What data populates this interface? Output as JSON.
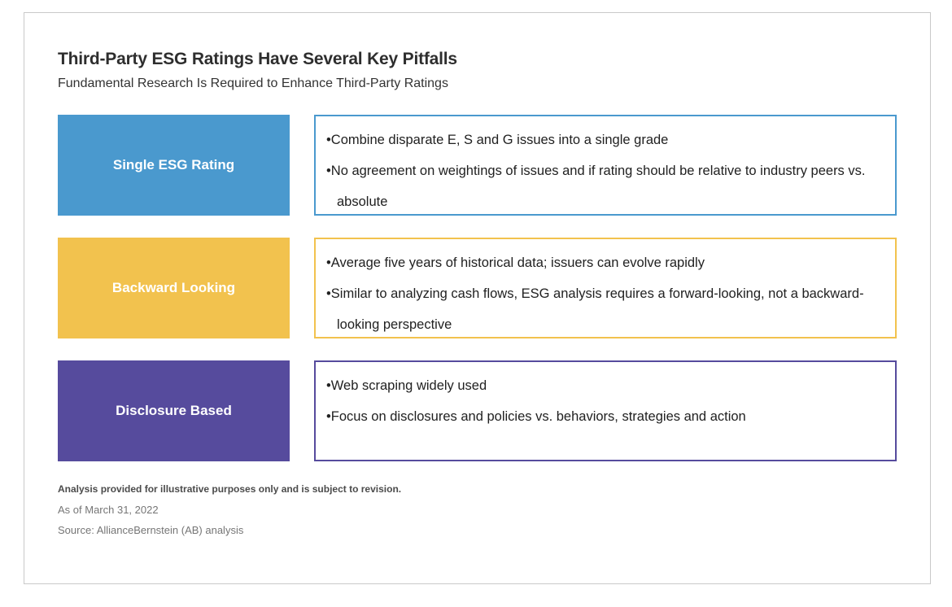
{
  "header": {
    "title": "Third-Party ESG Ratings Have Several Key Pitfalls",
    "subtitle": "Fundamental Research Is Required to Enhance Third-Party Ratings"
  },
  "rows": [
    {
      "label": "Single ESG Rating",
      "color": "#4a99ce",
      "bullets": [
        "Combine disparate E, S and G issues into a single grade",
        "No agreement on weightings of issues and if rating should be relative to industry peers vs. absolute"
      ]
    },
    {
      "label": "Backward Looking",
      "color": "#f2c24e",
      "bullets": [
        "Average five years of historical data; issuers can evolve rapidly",
        "Similar to analyzing cash flows, ESG analysis requires a forward-looking, not a backward-looking perspective"
      ]
    },
    {
      "label": "Disclosure Based",
      "color": "#564b9d",
      "bullets": [
        "Web scraping widely used",
        "Focus on disclosures and policies vs. behaviors, strategies and action"
      ]
    }
  ],
  "footnotes": {
    "disclaimer": "Analysis provided for illustrative purposes only and is subject to revision.",
    "as_of": "As of March 31, 2022",
    "source": "Source: AllianceBernstein (AB) analysis"
  }
}
